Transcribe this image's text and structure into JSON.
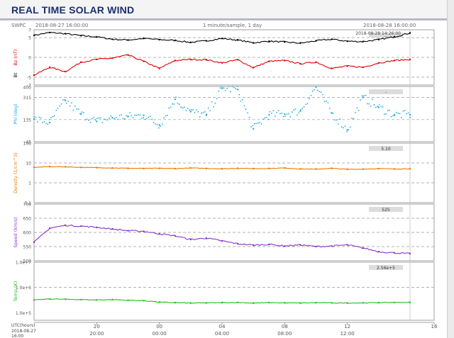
{
  "page": {
    "title": "REAL TIME SOLAR WIND"
  },
  "plot_header": {
    "source": "SWPC",
    "start": "2018-08-27 16:00:00",
    "cadence": "1 minute/sample, 1 day",
    "end": "2018-08-28 16:00:00",
    "latest_time": "2018-08-28 14:26:00"
  },
  "time_axis": {
    "utc_label": "UTC(hours)",
    "start_date": "2018-08-27",
    "start_time": "16:00",
    "ticks": [
      "20",
      "00",
      "04",
      "08",
      "12",
      "16"
    ],
    "times": [
      "20:00",
      "00:00",
      "04:00",
      "08:00",
      "12:00"
    ]
  },
  "chart_data": [
    {
      "type": "line",
      "panel": "magnetic field",
      "ylabel": "Bz (nT)",
      "ylabel2": "Bt",
      "ylim": [
        -7,
        7
      ],
      "yticks": [
        "7",
        "5",
        "0",
        "-5",
        "-7"
      ],
      "readout": "...",
      "series": [
        {
          "name": "Bt",
          "color": "#000000",
          "x": [
            0,
            1,
            2,
            3,
            4,
            5,
            6,
            7,
            8,
            9,
            10,
            11,
            12,
            13,
            14,
            15,
            16,
            17,
            18,
            19,
            20,
            21,
            22,
            23,
            24
          ],
          "values": [
            5.6,
            6.3,
            6.0,
            5.5,
            5.2,
            4.6,
            4.4,
            4.8,
            4.5,
            4.3,
            3.8,
            4.2,
            4.8,
            4.4,
            3.7,
            4.1,
            3.9,
            3.6,
            4.2,
            4.6,
            4.1,
            4.0,
            4.5,
            5.2,
            6.2
          ]
        },
        {
          "name": "Bz",
          "color": "#dd0000",
          "x": [
            0,
            1,
            2,
            3,
            4,
            5,
            6,
            7,
            8,
            9,
            10,
            11,
            12,
            13,
            14,
            15,
            16,
            17,
            18,
            19,
            20,
            21,
            22,
            23,
            24
          ],
          "values": [
            -4.5,
            -2.5,
            -3.6,
            -1.2,
            -0.5,
            -0.2,
            0.6,
            -1.0,
            -2.8,
            -0.8,
            -0.5,
            -0.6,
            -1.4,
            -0.6,
            -2.6,
            -1.0,
            -0.8,
            -1.6,
            -1.2,
            -2.8,
            -2.2,
            -2.5,
            -1.4,
            -0.8,
            -0.5
          ]
        }
      ]
    },
    {
      "type": "scatter",
      "panel": "phi",
      "ylabel": "Phi (deg)",
      "ylim": [
        -45,
        405
      ],
      "yticks": [
        "400",
        "315",
        "135",
        "-45"
      ],
      "readout": "-",
      "series": [
        {
          "name": "Phi",
          "color": "#22aadd",
          "x": [
            0,
            1,
            2,
            3,
            4,
            5,
            6,
            7,
            8,
            9,
            10,
            11,
            12,
            13,
            14,
            15,
            16,
            17,
            18,
            19,
            20,
            21,
            22,
            23,
            24
          ],
          "values": [
            140,
            110,
            290,
            180,
            120,
            150,
            160,
            170,
            90,
            300,
            200,
            170,
            390,
            380,
            60,
            175,
            180,
            205,
            400,
            190,
            50,
            315,
            235,
            175,
            175
          ]
        }
      ]
    },
    {
      "type": "line",
      "panel": "density",
      "ylabel": "Density (1/cm^3)",
      "ylim": [
        0.1,
        100
      ],
      "yticks": [
        "100",
        "10",
        "1",
        "0.1"
      ],
      "readout": "5.10",
      "series": [
        {
          "name": "Density",
          "color": "#ee7700",
          "x": [
            0,
            1,
            2,
            3,
            4,
            5,
            6,
            7,
            8,
            9,
            10,
            11,
            12,
            13,
            14,
            15,
            16,
            17,
            18,
            19,
            20,
            21,
            22,
            23,
            24
          ],
          "values": [
            6.0,
            6.6,
            6.4,
            6.0,
            5.8,
            5.6,
            5.4,
            5.3,
            5.4,
            5.2,
            5.6,
            5.3,
            5.1,
            5.4,
            5.2,
            5.3,
            5.6,
            5.0,
            4.9,
            5.4,
            4.8,
            4.9,
            5.2,
            5.0,
            5.1
          ]
        }
      ]
    },
    {
      "type": "line",
      "panel": "speed",
      "ylabel": "Speed (km/s)",
      "ylim": [
        500,
        700
      ],
      "yticks": [
        "700",
        "650",
        "600",
        "550",
        "500"
      ],
      "readout": "525",
      "series": [
        {
          "name": "Speed",
          "color": "#8833cc",
          "x": [
            0,
            1,
            2,
            3,
            4,
            5,
            6,
            7,
            8,
            9,
            10,
            11,
            12,
            13,
            14,
            15,
            16,
            17,
            18,
            19,
            20,
            21,
            22,
            23,
            24
          ],
          "values": [
            565,
            615,
            625,
            622,
            618,
            612,
            606,
            604,
            595,
            588,
            575,
            580,
            570,
            560,
            555,
            558,
            552,
            556,
            550,
            552,
            556,
            545,
            532,
            528,
            525
          ]
        }
      ]
    },
    {
      "type": "line",
      "panel": "temperature",
      "ylabel": "Temp (K)",
      "ylim": [
        50000,
        10000000
      ],
      "yticks": [
        "1.0e+7",
        "1.0e+6",
        "1.0e+5"
      ],
      "readout": "2.56e+5",
      "series": [
        {
          "name": "Temp",
          "color": "#22bb22",
          "x": [
            0,
            1,
            2,
            3,
            4,
            5,
            6,
            7,
            8,
            9,
            10,
            11,
            12,
            13,
            14,
            15,
            16,
            17,
            18,
            19,
            20,
            21,
            22,
            23,
            24
          ],
          "values": [
            320000,
            350000,
            340000,
            330000,
            320000,
            330000,
            310000,
            300000,
            260000,
            250000,
            240000,
            245000,
            250000,
            255000,
            240000,
            250000,
            245000,
            240000,
            250000,
            245000,
            240000,
            245000,
            250000,
            255000,
            256000
          ]
        }
      ]
    }
  ]
}
